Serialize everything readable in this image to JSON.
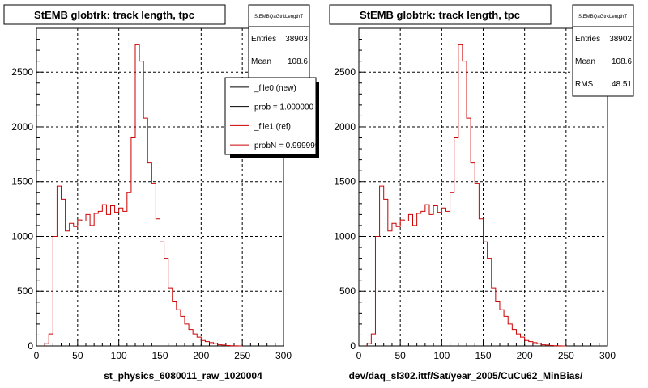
{
  "colors": {
    "reference": "#cc0000",
    "new": "#000000",
    "grid": "#000000",
    "legend_shadow": "#000000"
  },
  "chart_data": [
    {
      "type": "histogram",
      "title": "StEMB globtrk: track length, tpc",
      "xlabel": "st_physics_6080011_raw_1020004",
      "xlim": [
        0,
        300
      ],
      "ylim": [
        0,
        2900
      ],
      "xticks": [
        0,
        50,
        100,
        150,
        200,
        250,
        300
      ],
      "yticks": [
        0,
        500,
        1000,
        1500,
        2000,
        2500
      ],
      "grid": true,
      "stats": {
        "name": "StEMBQaGtrkLengthT",
        "entries_label": "Entries",
        "entries": "38903",
        "mean_label": "Mean",
        "mean": "108.6"
      },
      "legend": {
        "placement": "top-right",
        "entries": [
          {
            "label": "_file0 (new)",
            "color": "#000000"
          },
          {
            "label": "prob = 1.000000",
            "color": "#000000"
          },
          {
            "label": "_file1 (ref)",
            "color": "#cc0000"
          },
          {
            "label": "probN = 0.999999",
            "color": "#cc0000"
          }
        ]
      },
      "bin_width": 5,
      "x_start": 10,
      "series": [
        {
          "values": [
            20,
            110,
            1000,
            1460,
            1340,
            1050,
            1120,
            1090,
            1150,
            1140,
            1200,
            1100,
            1210,
            1230,
            1290,
            1200,
            1280,
            1220,
            1260,
            1230,
            1400,
            1900,
            2750,
            2600,
            2080,
            1670,
            1480,
            1160,
            950,
            800,
            530,
            410,
            330,
            270,
            200,
            150,
            110,
            80,
            50,
            40,
            30,
            20,
            10,
            8,
            4,
            2,
            1,
            0
          ]
        }
      ]
    },
    {
      "type": "histogram",
      "title": "StEMB globtrk: track length, tpc",
      "xlabel": "dev/daq_sl302.ittf/Sat/year_2005/CuCu62_MinBias/",
      "xlim": [
        0,
        300
      ],
      "ylim": [
        0,
        2900
      ],
      "xticks": [
        0,
        50,
        100,
        150,
        200,
        250,
        300
      ],
      "yticks": [
        0,
        500,
        1000,
        1500,
        2000,
        2500
      ],
      "grid": true,
      "stats": {
        "name": "StEMBQaGtrkLengthT",
        "entries_label": "Entries",
        "entries": "38902",
        "mean_label": "Mean",
        "mean": "108.6",
        "rms_label": "RMS",
        "rms": "48.51"
      },
      "bin_width": 5,
      "x_start": 10,
      "series": [
        {
          "values": [
            20,
            110,
            1000,
            1460,
            1340,
            1050,
            1120,
            1090,
            1150,
            1140,
            1200,
            1100,
            1210,
            1230,
            1290,
            1200,
            1280,
            1220,
            1260,
            1230,
            1400,
            1900,
            2750,
            2600,
            2080,
            1670,
            1480,
            1160,
            950,
            800,
            530,
            410,
            330,
            270,
            200,
            150,
            110,
            80,
            50,
            40,
            30,
            20,
            10,
            8,
            4,
            2,
            1,
            0
          ]
        }
      ]
    }
  ]
}
